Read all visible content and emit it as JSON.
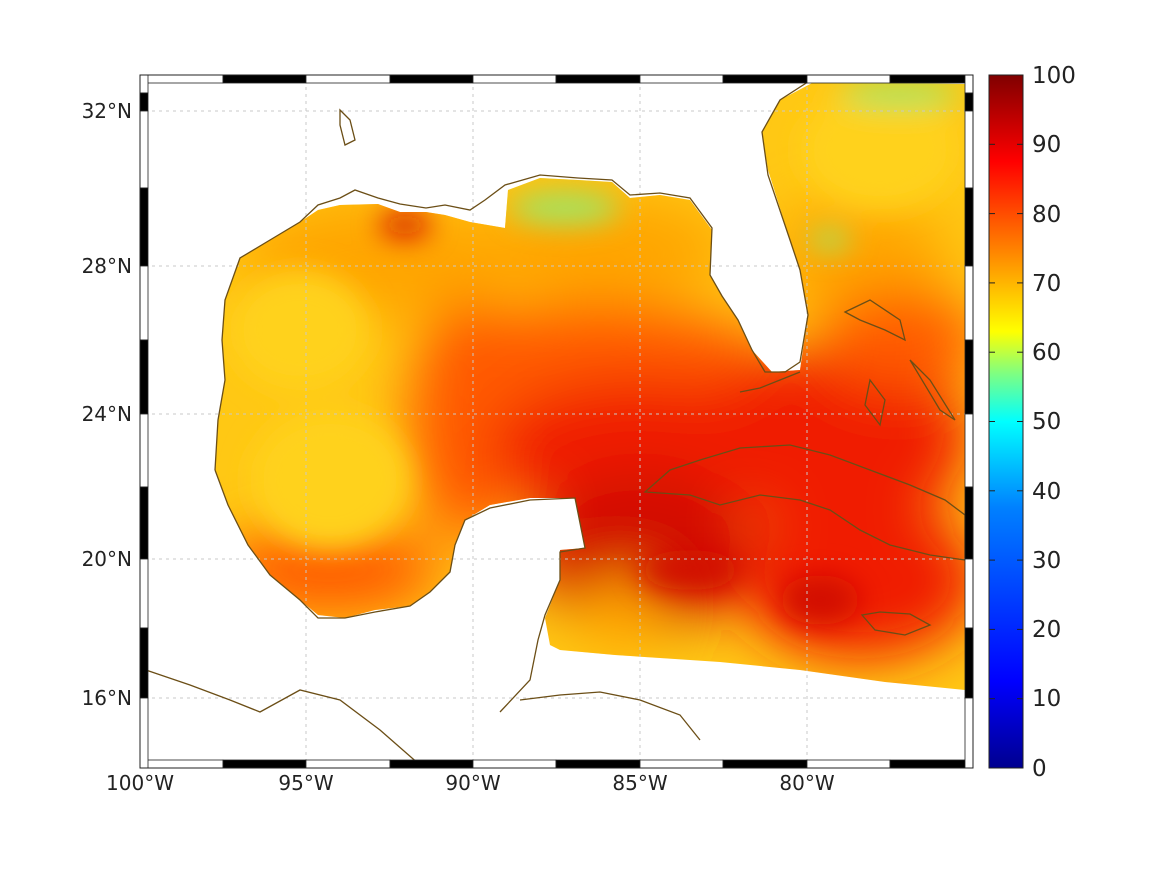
{
  "map": {
    "lon_labels": [
      "100°W",
      "95°W",
      "90°W",
      "85°W",
      "80°W"
    ],
    "lat_labels": [
      "32°N",
      "28°N",
      "24°N",
      "20°N",
      "16°N"
    ],
    "coastline_color": "#6b4e16",
    "graticule_color": "#c8c8c8"
  },
  "colorbar": {
    "ticks": [
      "100",
      "90",
      "80",
      "70",
      "60",
      "50",
      "40",
      "30",
      "20",
      "10",
      "0"
    ],
    "colormap": [
      "#00008f",
      "#0000ff",
      "#0080ff",
      "#00ffff",
      "#80ff80",
      "#ffff00",
      "#ff8000",
      "#ff0000",
      "#800000"
    ]
  },
  "field_colors": {
    "yellow": "#ffd21e",
    "orange": "#ffa500",
    "red_orange": "#ff5a00",
    "red": "#f01e00",
    "deep_red": "#d20a00",
    "green": "#a0e664"
  }
}
